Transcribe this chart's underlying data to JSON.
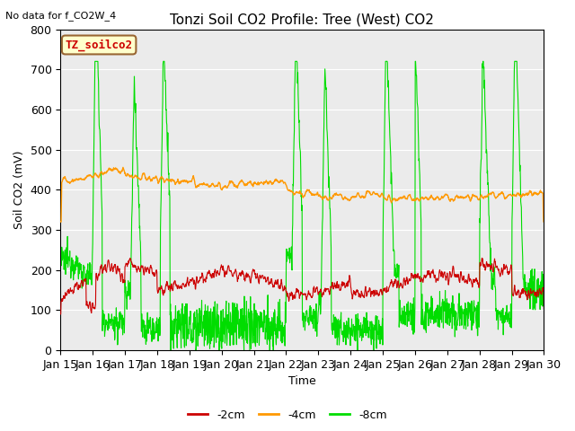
{
  "title": "Tonzi Soil CO2 Profile: Tree (West) CO2",
  "no_data_label": "No data for f_CO2W_4",
  "ylabel": "Soil CO2 (mV)",
  "xlabel": "Time",
  "ylim": [
    0,
    800
  ],
  "yticks": [
    0,
    100,
    200,
    300,
    400,
    500,
    600,
    700,
    800
  ],
  "x_labels": [
    "Jan 15",
    "Jan 16",
    "Jan 17",
    "Jan 18",
    "Jan 19",
    "Jan 20",
    "Jan 21",
    "Jan 22",
    "Jan 23",
    "Jan 24",
    "Jan 25",
    "Jan 26",
    "Jan 27",
    "Jan 28",
    "Jan 29",
    "Jan 30"
  ],
  "color_red": "#cc0000",
  "color_orange": "#ff9900",
  "color_green": "#00dd00",
  "legend_label_red": "-2cm",
  "legend_label_orange": "-4cm",
  "legend_label_green": "-8cm",
  "bg_color": "#ebebeb",
  "box_label": "TZ_soilco2",
  "box_facecolor": "#ffffcc",
  "box_edgecolor": "#996633",
  "title_fontsize": 11,
  "axis_fontsize": 9,
  "legend_fontsize": 9,
  "n_points": 1500
}
